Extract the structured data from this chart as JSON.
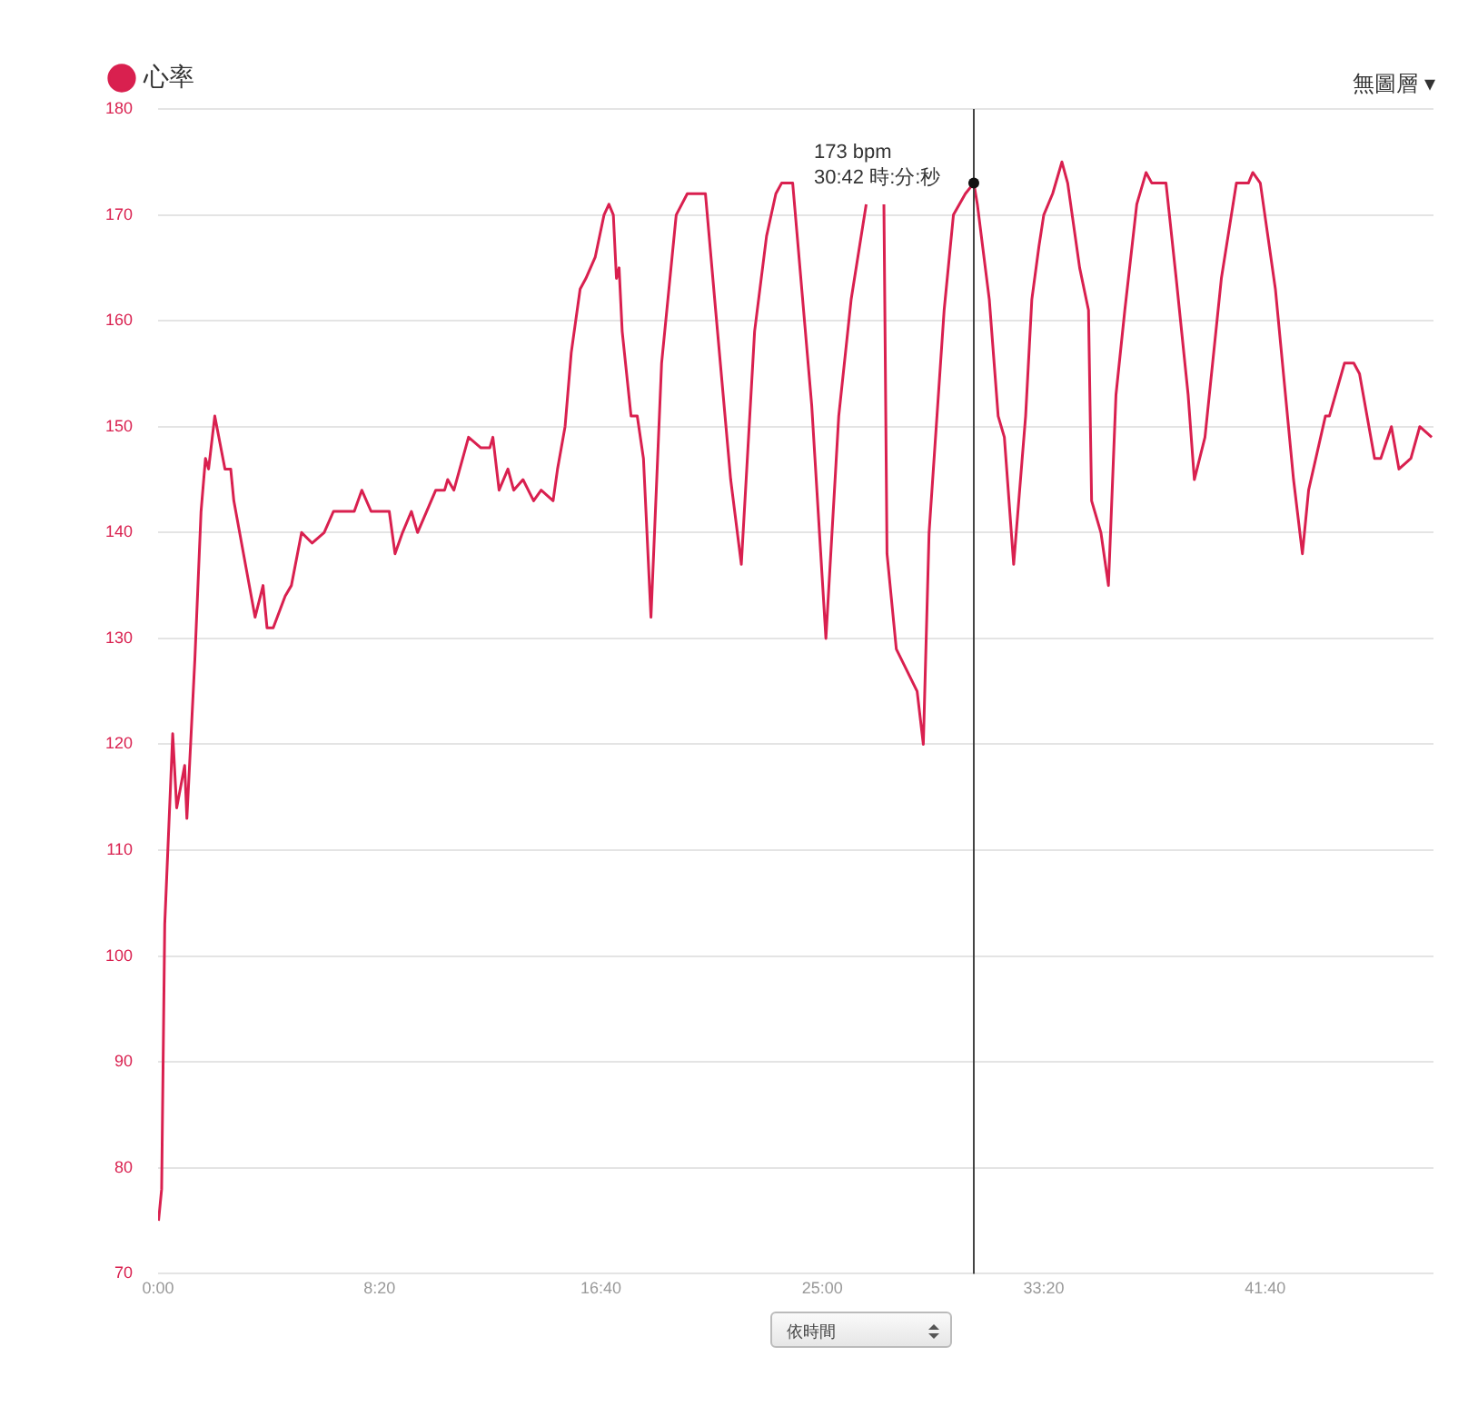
{
  "chart_data": {
    "type": "line",
    "x": [
      1,
      8,
      15,
      33,
      42,
      60,
      65,
      83,
      97,
      107,
      114,
      128,
      151,
      164,
      171,
      219,
      237,
      246,
      260,
      287,
      301,
      324,
      348,
      375,
      396,
      443,
      460,
      481,
      504,
      522,
      535,
      552,
      572,
      586,
      627,
      647,
      654,
      668,
      701,
      729,
      749,
      756,
      770,
      790,
      803,
      824,
      848,
      865,
      892,
      902,
      919,
      933,
      953,
      966,
      987,
      1007,
      1018,
      1028,
      1035,
      1041,
      1048,
      1068,
      1082,
      1096,
      1113,
      1137,
      1170,
      1195,
      1236,
      1259,
      1293,
      1317,
      1347,
      1374,
      1395,
      1408,
      1433,
      1476,
      1508,
      1537,
      1565,
      1599,
      1620,
      1639,
      1646,
      1667,
      1714,
      1728,
      1741,
      1775,
      1796,
      1823,
      1842,
      1850,
      1877,
      1897,
      1911,
      1932,
      1959,
      1973,
      1989,
      2000,
      2020,
      2041,
      2054,
      2081,
      2101,
      2108,
      2129,
      2146,
      2163,
      2183,
      2210,
      2231,
      2244,
      2276,
      2299,
      2326,
      2340,
      2364,
      2401,
      2435,
      2462,
      2472,
      2489,
      2523,
      2564,
      2584,
      2598,
      2636,
      2645,
      2679,
      2700,
      2713,
      2747,
      2761,
      2785,
      2802,
      2829,
      2849,
      2876
    ],
    "series": [
      {
        "name": "心率",
        "color": "#d9204f",
        "values": [
          75,
          78,
          103,
          121,
          114,
          118,
          113,
          128,
          142,
          147,
          146,
          151,
          146,
          146,
          143,
          132,
          135,
          131,
          131,
          134,
          135,
          140,
          139,
          140,
          142,
          142,
          144,
          142,
          142,
          142,
          138,
          140,
          142,
          140,
          144,
          144,
          145,
          144,
          149,
          148,
          148,
          149,
          144,
          146,
          144,
          145,
          143,
          144,
          143,
          146,
          150,
          157,
          163,
          164,
          166,
          170,
          171,
          170,
          164,
          165,
          159,
          151,
          151,
          147,
          132,
          156,
          170,
          172,
          172,
          161,
          145,
          137,
          159,
          168,
          172,
          173,
          173,
          152,
          130,
          151,
          162,
          171,
          null,
          171,
          138,
          129,
          125,
          120,
          140,
          161,
          170,
          172,
          173,
          171,
          162,
          151,
          149,
          137,
          151,
          162,
          167,
          170,
          172,
          175,
          173,
          165,
          161,
          143,
          140,
          135,
          153,
          161,
          171,
          174,
          173,
          173,
          164,
          153,
          145,
          149,
          164,
          173,
          173,
          174,
          173,
          163,
          145,
          138,
          144,
          151,
          151,
          156,
          156,
          155,
          147,
          147,
          150,
          146,
          147,
          150,
          149
        ]
      }
    ],
    "xlim": [
      0,
      2880
    ],
    "xticks": [
      {
        "value": 0,
        "label": "0:00"
      },
      {
        "value": 500,
        "label": "8:20"
      },
      {
        "value": 1000,
        "label": "16:40"
      },
      {
        "value": 1500,
        "label": "25:00"
      },
      {
        "value": 2000,
        "label": "33:20"
      },
      {
        "value": 2500,
        "label": "41:40"
      }
    ],
    "ylim": [
      70,
      180
    ],
    "yticks": [
      70,
      80,
      90,
      100,
      110,
      120,
      130,
      140,
      150,
      160,
      170,
      180
    ],
    "grid": "y",
    "legend": "top left",
    "marker": "none",
    "line_style": "solid",
    "ref_lines": [
      {
        "axis": "x",
        "value": 1842,
        "color": "#444444"
      }
    ],
    "annotations": [
      {
        "text": "173 bpm\n30:42 時:分:秒",
        "x": 1842,
        "y": 173
      },
      "無圖層 ▾",
      "依時間"
    ]
  }
}
